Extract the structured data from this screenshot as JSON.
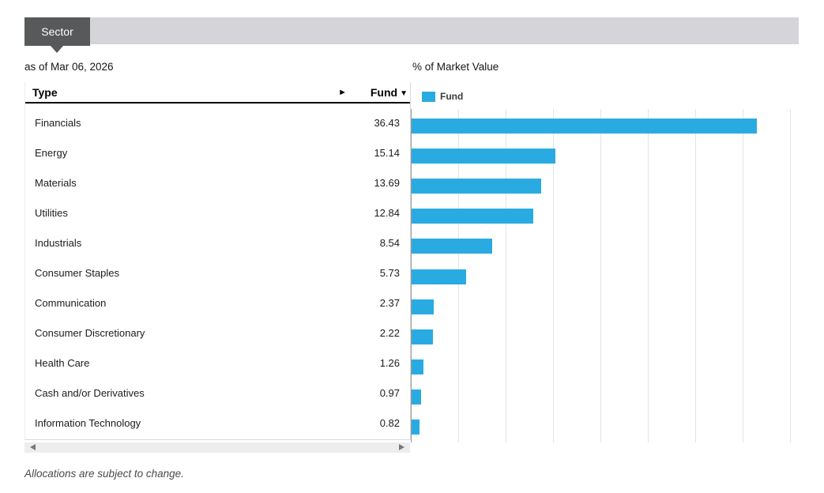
{
  "tabs": [
    {
      "label": "Sector",
      "active": true
    }
  ],
  "header": {
    "as_of": "as of Mar 06, 2026"
  },
  "table": {
    "columns": [
      "Type",
      "Fund"
    ],
    "sort_icon": "▼",
    "expand_icon": "►",
    "rows": [
      {
        "type": "Financials",
        "fund": "36.43"
      },
      {
        "type": "Energy",
        "fund": "15.14"
      },
      {
        "type": "Materials",
        "fund": "13.69"
      },
      {
        "type": "Utilities",
        "fund": "12.84"
      },
      {
        "type": "Industrials",
        "fund": "8.54"
      },
      {
        "type": "Consumer Staples",
        "fund": "5.73"
      },
      {
        "type": "Communication",
        "fund": "2.37"
      },
      {
        "type": "Consumer Discretionary",
        "fund": "2.22"
      },
      {
        "type": "Health Care",
        "fund": "1.26"
      },
      {
        "type": "Cash and/or Derivatives",
        "fund": "0.97"
      },
      {
        "type": "Information Technology",
        "fund": "0.82"
      }
    ]
  },
  "chart_data": {
    "type": "bar",
    "orientation": "horizontal",
    "title": "% of Market Value",
    "legend": [
      "Fund"
    ],
    "legend_position": "top-left",
    "categories": [
      "Financials",
      "Energy",
      "Materials",
      "Utilities",
      "Industrials",
      "Consumer Staples",
      "Communication",
      "Consumer Discretionary",
      "Health Care",
      "Cash and/or Derivatives",
      "Information Technology"
    ],
    "values": [
      36.43,
      15.14,
      13.69,
      12.84,
      8.54,
      5.73,
      2.37,
      2.22,
      1.26,
      0.97,
      0.82
    ],
    "xlim": [
      0,
      40
    ],
    "gridline_step": 5,
    "grid": true,
    "bar_color": "#29abe2"
  },
  "footer": {
    "note": "Allocations are subject to change."
  },
  "colors": {
    "accent_blue": "#29abe2",
    "tab_active_bg": "#58595b",
    "tab_bar_bg": "#d5d5d9",
    "gridline": "#e4e4e4",
    "axis": "#9a9a9a"
  }
}
